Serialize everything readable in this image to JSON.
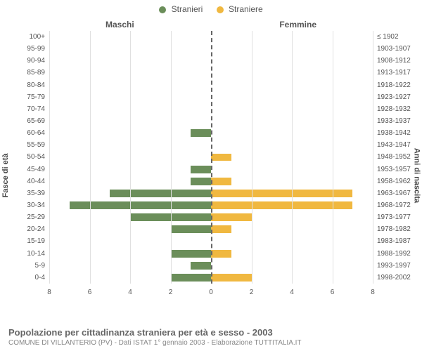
{
  "legend": {
    "male": "Stranieri",
    "female": "Straniere"
  },
  "columns": {
    "male_title": "Maschi",
    "female_title": "Femmine"
  },
  "axis": {
    "left_title": "Fasce di età",
    "right_title": "Anni di nascita",
    "xmax": 8,
    "xtick_step": 2,
    "xticks_left": [
      "8",
      "6",
      "4",
      "2",
      "0"
    ],
    "xticks_right": [
      "0",
      "2",
      "4",
      "6",
      "8"
    ]
  },
  "colors": {
    "male": "#6b8e5a",
    "female": "#f0b840",
    "grid": "#e0e0e0",
    "background": "#ffffff"
  },
  "rows": [
    {
      "age": "100+",
      "birth": "≤ 1902",
      "m": 0,
      "f": 0
    },
    {
      "age": "95-99",
      "birth": "1903-1907",
      "m": 0,
      "f": 0
    },
    {
      "age": "90-94",
      "birth": "1908-1912",
      "m": 0,
      "f": 0
    },
    {
      "age": "85-89",
      "birth": "1913-1917",
      "m": 0,
      "f": 0
    },
    {
      "age": "80-84",
      "birth": "1918-1922",
      "m": 0,
      "f": 0
    },
    {
      "age": "75-79",
      "birth": "1923-1927",
      "m": 0,
      "f": 0
    },
    {
      "age": "70-74",
      "birth": "1928-1932",
      "m": 0,
      "f": 0
    },
    {
      "age": "65-69",
      "birth": "1933-1937",
      "m": 0,
      "f": 0
    },
    {
      "age": "60-64",
      "birth": "1938-1942",
      "m": 1,
      "f": 0
    },
    {
      "age": "55-59",
      "birth": "1943-1947",
      "m": 0,
      "f": 0
    },
    {
      "age": "50-54",
      "birth": "1948-1952",
      "m": 0,
      "f": 1
    },
    {
      "age": "45-49",
      "birth": "1953-1957",
      "m": 1,
      "f": 0
    },
    {
      "age": "40-44",
      "birth": "1958-1962",
      "m": 1,
      "f": 1
    },
    {
      "age": "35-39",
      "birth": "1963-1967",
      "m": 5,
      "f": 7
    },
    {
      "age": "30-34",
      "birth": "1968-1972",
      "m": 7,
      "f": 7
    },
    {
      "age": "25-29",
      "birth": "1973-1977",
      "m": 4,
      "f": 2
    },
    {
      "age": "20-24",
      "birth": "1978-1982",
      "m": 2,
      "f": 1
    },
    {
      "age": "15-19",
      "birth": "1983-1987",
      "m": 0,
      "f": 0
    },
    {
      "age": "10-14",
      "birth": "1988-1992",
      "m": 2,
      "f": 1
    },
    {
      "age": "5-9",
      "birth": "1993-1997",
      "m": 1,
      "f": 0
    },
    {
      "age": "0-4",
      "birth": "1998-2002",
      "m": 2,
      "f": 2
    }
  ],
  "footer": {
    "title": "Popolazione per cittadinanza straniera per età e sesso - 2003",
    "subtitle": "COMUNE DI VILLANTERIO (PV) - Dati ISTAT 1° gennaio 2003 - Elaborazione TUTTITALIA.IT"
  }
}
